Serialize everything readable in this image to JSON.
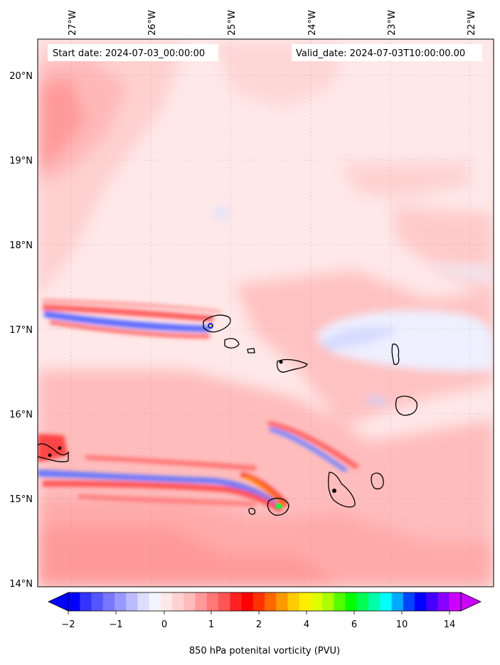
{
  "map": {
    "start_date_label": "Start date: 2024-07-03_00:00:00",
    "valid_date_label": "Valid_date: 2024-07-03T10:00:00.00",
    "lon_labels": [
      "27°W",
      "26°W",
      "25°W",
      "24°W",
      "23°W",
      "22°W"
    ],
    "lat_labels": [
      "20°N",
      "19°N",
      "18°N",
      "17°N",
      "16°N",
      "15°N",
      "14°N"
    ],
    "extent": {
      "lon_min": -27.38,
      "lon_max": -21.62,
      "lat_min": 13.95,
      "lat_max": 20.42
    },
    "background_color": "#ffe8e8",
    "coastline_color": "#000000"
  },
  "colorbar": {
    "label": "850 hPa potenital vorticity (PVU)",
    "tick_labels": [
      "−2",
      "−1",
      "0",
      "1",
      "2",
      "4",
      "6",
      "10",
      "14"
    ],
    "colors": [
      "#0000ff",
      "#3333ff",
      "#5555ff",
      "#7777ff",
      "#9999ff",
      "#bbbbff",
      "#ddddff",
      "#f4f4ff",
      "#ffe8e8",
      "#ffd2d2",
      "#ffbbbb",
      "#ff9999",
      "#ff7777",
      "#ff5555",
      "#ff2222",
      "#ff0000",
      "#ff3300",
      "#ff6600",
      "#ff9900",
      "#ffcc00",
      "#ffee00",
      "#ddff00",
      "#aaff00",
      "#55ff00",
      "#00ff00",
      "#00ff55",
      "#00ffaa",
      "#00ffff",
      "#00aaff",
      "#0044ff",
      "#0000ff",
      "#4400ff",
      "#8800ff",
      "#cc00ff"
    ]
  }
}
